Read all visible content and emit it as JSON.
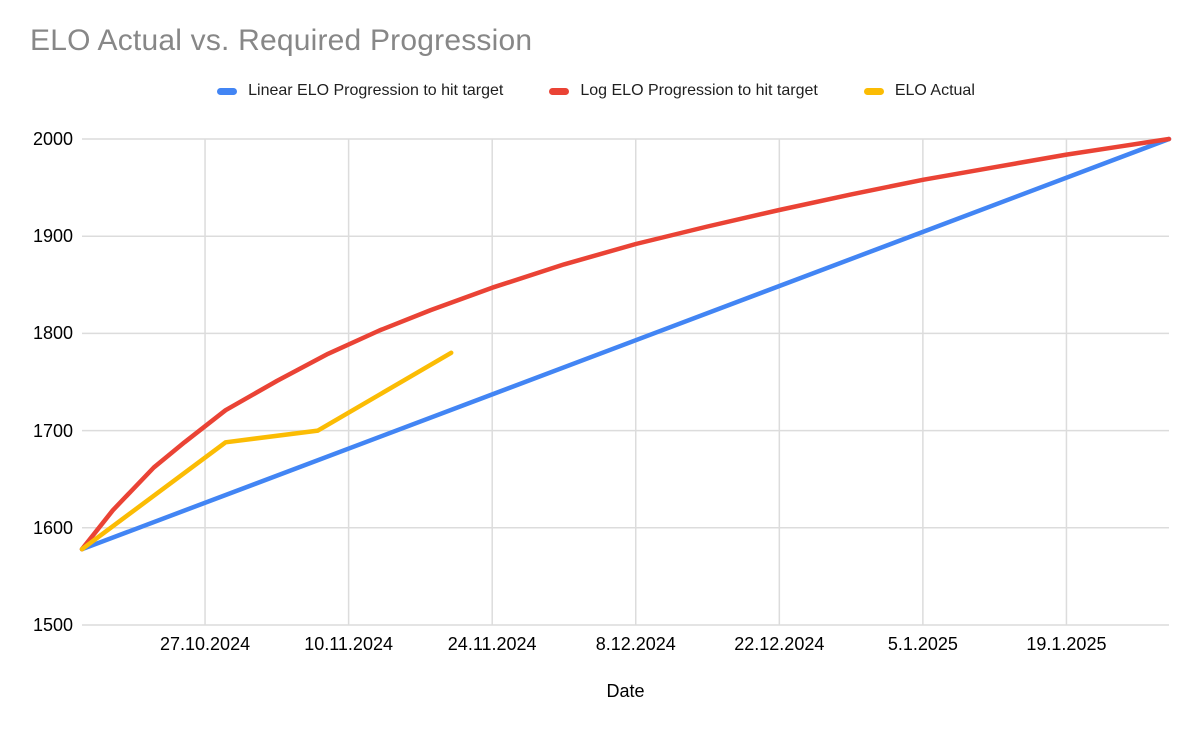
{
  "chart_data": {
    "type": "line",
    "title": "ELO Actual vs. Required Progression",
    "xlabel": "Date",
    "ylabel": "",
    "ylim": [
      1500,
      2000
    ],
    "y_ticks": [
      2000,
      1900,
      1800,
      1700,
      1600,
      1500
    ],
    "x_days_domain": [
      0,
      106
    ],
    "x_ticks": [
      {
        "day": 12,
        "label": "27.10.2024"
      },
      {
        "day": 26,
        "label": "10.11.2024"
      },
      {
        "day": 40,
        "label": "24.11.2024"
      },
      {
        "day": 54,
        "label": "8.12.2024"
      },
      {
        "day": 68,
        "label": "22.12.2024"
      },
      {
        "day": 82,
        "label": "5.1.2025"
      },
      {
        "day": 96,
        "label": "19.1.2025"
      }
    ],
    "grid": true,
    "legend_position": "top",
    "series": [
      {
        "name": "Linear ELO Progression to hit target",
        "color": "#4285F4",
        "points": [
          [
            0,
            1578
          ],
          [
            106,
            2000
          ]
        ]
      },
      {
        "name": "Log ELO Progression to hit target",
        "color": "#EA4335",
        "points": [
          [
            0,
            1578
          ],
          [
            3,
            1618
          ],
          [
            7,
            1662
          ],
          [
            10,
            1688
          ],
          [
            14,
            1721
          ],
          [
            19,
            1751
          ],
          [
            24,
            1779
          ],
          [
            29,
            1803
          ],
          [
            34,
            1824
          ],
          [
            40,
            1847
          ],
          [
            47,
            1871
          ],
          [
            54,
            1892
          ],
          [
            61,
            1910
          ],
          [
            68,
            1927
          ],
          [
            75,
            1943
          ],
          [
            82,
            1958
          ],
          [
            89,
            1971
          ],
          [
            96,
            1984
          ],
          [
            101,
            1992
          ],
          [
            106,
            2000
          ]
        ]
      },
      {
        "name": "ELO Actual",
        "color": "#FBBC04",
        "points": [
          [
            0,
            1578
          ],
          [
            14,
            1688
          ],
          [
            23,
            1700
          ],
          [
            36,
            1780
          ]
        ]
      }
    ]
  }
}
